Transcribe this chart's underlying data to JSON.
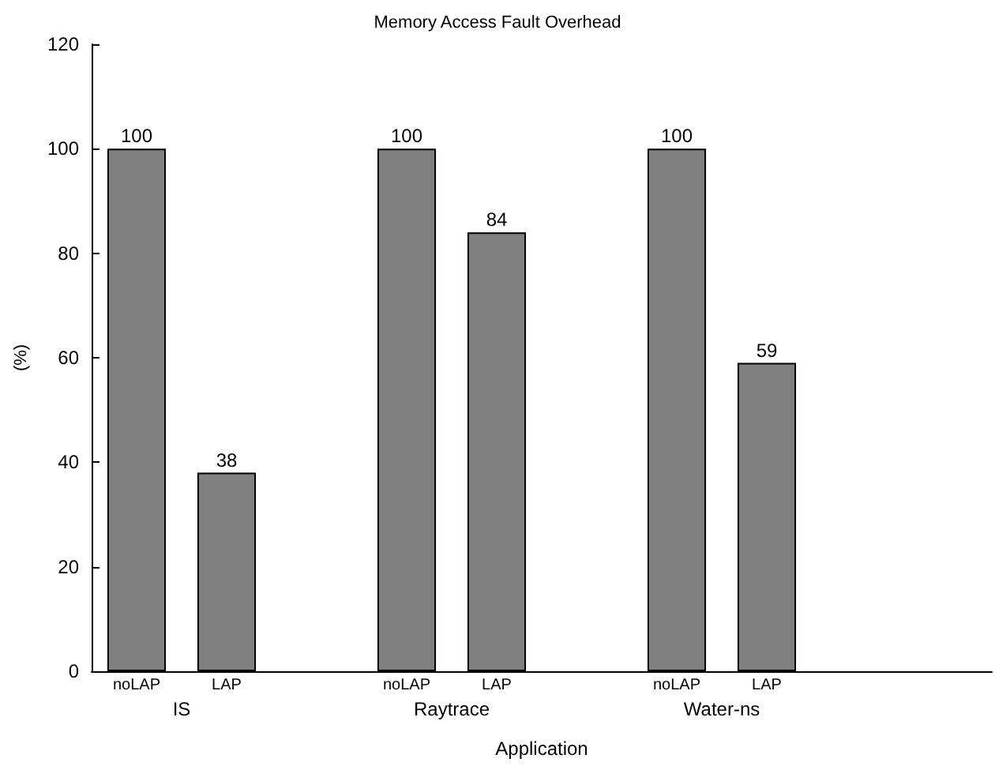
{
  "chart_data": {
    "type": "bar",
    "title": "Memory Access Fault Overhead",
    "xlabel": "Application",
    "ylabel": "(%)",
    "categories": [
      "noLAP",
      "LAP",
      null,
      "noLAP",
      "LAP",
      null,
      "noLAP",
      "LAP",
      null,
      null
    ],
    "values": [
      100,
      38,
      null,
      100,
      84,
      null,
      100,
      59,
      null,
      null
    ],
    "color": "#808080",
    "ylim": [
      0,
      120
    ],
    "yticks": [
      0,
      20,
      40,
      60,
      80,
      100,
      120
    ],
    "data_labels": true,
    "grid": false,
    "annotations": [
      "IS",
      "Raytrace",
      "Water-ns"
    ]
  }
}
